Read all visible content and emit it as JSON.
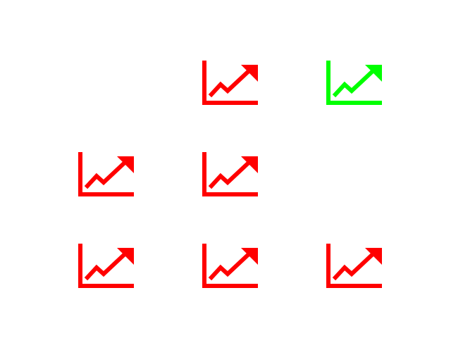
{
  "colors": {
    "default": "#ff0000",
    "highlight": "#00ff00",
    "background": "#ffffff"
  },
  "grid": {
    "rows": 3,
    "cols": 3,
    "cells": [
      {
        "icon": "chart-line-up-icon",
        "visible": false,
        "color": "default"
      },
      {
        "icon": "chart-line-up-icon",
        "visible": true,
        "color": "default"
      },
      {
        "icon": "chart-line-up-icon",
        "visible": true,
        "color": "highlight"
      },
      {
        "icon": "chart-line-up-icon",
        "visible": true,
        "color": "default"
      },
      {
        "icon": "chart-line-up-icon",
        "visible": true,
        "color": "default"
      },
      {
        "icon": "chart-line-up-icon",
        "visible": false,
        "color": "default"
      },
      {
        "icon": "chart-line-up-icon",
        "visible": true,
        "color": "default"
      },
      {
        "icon": "chart-line-up-icon",
        "visible": true,
        "color": "default"
      },
      {
        "icon": "chart-line-up-icon",
        "visible": true,
        "color": "default"
      }
    ]
  }
}
